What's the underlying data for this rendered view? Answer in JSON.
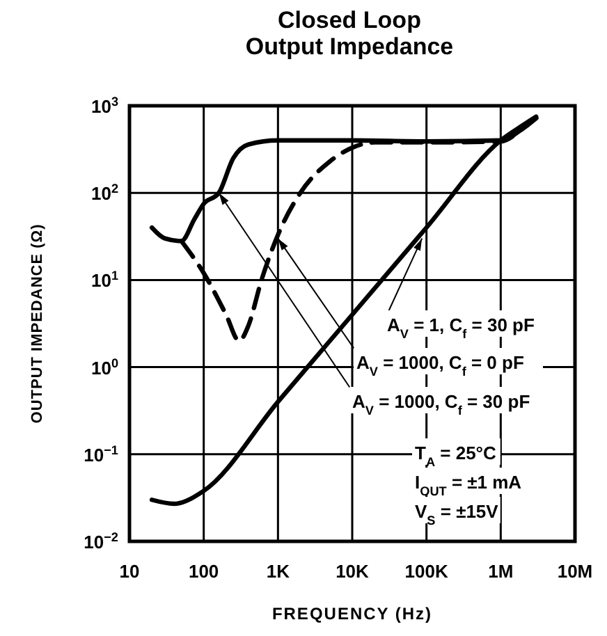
{
  "chart_data": {
    "type": "line",
    "title": "Closed Loop\nOutput Impedance",
    "xlabel": "FREQUENCY (Hz)",
    "ylabel": "OUTPUT IMPEDANCE (Ω)",
    "log": "xy",
    "grid": true,
    "xlim": [
      10,
      10000000
    ],
    "ylim": [
      0.01,
      1000
    ],
    "xticks": [
      10,
      100,
      {
        "value": 1000,
        "label": "1K"
      },
      {
        "value": 10000,
        "label": "10K"
      },
      {
        "value": 100000,
        "label": "100K"
      },
      {
        "value": 1000000,
        "label": "1M"
      },
      {
        "value": 10000000,
        "label": "10M"
      }
    ],
    "yticks": [
      {
        "value": 0.01,
        "label": "10$^{−2}$"
      },
      {
        "value": 0.1,
        "label": "10$^{−1}$"
      },
      {
        "value": 1,
        "label": "10$^{0}$"
      },
      {
        "value": 10,
        "label": "10$^{1}$"
      },
      {
        "value": 100,
        "label": "10$^{2}$"
      },
      {
        "value": 1000,
        "label": "10$^{3}$"
      }
    ],
    "series": [
      {
        "color": "#000000",
        "line_style": "solid",
        "x": [
          20,
          30,
          50,
          75,
          100,
          160,
          250,
          400,
          1000,
          10000,
          100000,
          1000000,
          2000000,
          3000000
        ],
        "values": [
          40,
          30,
          28,
          50,
          75,
          100,
          250,
          360,
          400,
          400,
          390,
          400,
          550,
          720
        ]
      },
      {
        "color": "#000000",
        "line_style": "dashed",
        "x": [
          50,
          100,
          200,
          300,
          400,
          600,
          1000,
          2000,
          5000,
          10000,
          20000,
          100000,
          1000000,
          2000000,
          3000000
        ],
        "values": [
          28,
          12,
          4,
          2,
          3,
          10,
          33,
          100,
          230,
          330,
          380,
          380,
          390,
          550,
          720
        ]
      },
      {
        "color": "#000000",
        "line_style": "solid",
        "x": [
          20,
          40,
          100,
          1000,
          10000,
          100000,
          1000000,
          2000000,
          3000000
        ],
        "values": [
          0.03,
          0.027,
          0.038,
          0.4,
          4,
          40,
          400,
          600,
          750
        ]
      }
    ],
    "annotations": [
      {
        "text": "A$_{V}$ = 1, C$_{f}$ = 30 pF",
        "x": 87000,
        "y": 30
      },
      {
        "text": "A$_{V}$ = 1000, C$_{f}$ = 0 pF",
        "x": 1000,
        "y": 30
      },
      {
        "text": "A$_{V}$ = 1000, C$_{f}$ = 30 pF",
        "x": 160,
        "y": 100
      },
      "T$_{A}$ = 25°C",
      "I$_{OUT}$ = ±1 mA",
      "V$_{S}$ = ±15V"
    ]
  }
}
